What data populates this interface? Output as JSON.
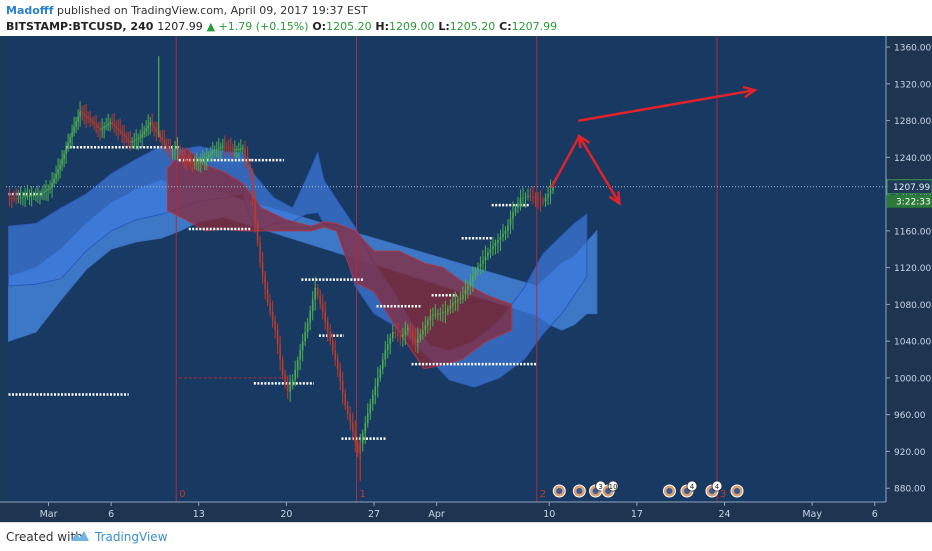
{
  "header": {
    "author": "Madofff",
    "published": "published on TradingView.com, April 09, 2017 19:37 EST",
    "symbol": "BITSTAMP:BTCUSD, 240",
    "last": "1207.99",
    "change": "▲ +1.79 (+0.15%)",
    "o_label": "O:",
    "o_value": "1205.20",
    "h_label": "H:",
    "h_value": "1209.00",
    "l_label": "L:",
    "l_value": "1205.20",
    "c_label": "C:",
    "c_value": "1207.99"
  },
  "footer": {
    "created_with": "Created with",
    "brand": "TradingView"
  },
  "colors": {
    "background": "#1a3a5c",
    "axis_bg": "#1e3450",
    "up": "#4caf50",
    "down": "#c0392b",
    "cloud_blue": "#3d7be0",
    "cloud_red": "#8a2a3a",
    "arrow": "#e0232b",
    "vline": "#b02a3a"
  },
  "chart_data": {
    "type": "candlestick",
    "price_axis": {
      "ticks": [
        "1360.00",
        "1320.00",
        "1280.00",
        "1240.00",
        "1200.00",
        "1160.00",
        "1120.00",
        "1080.00",
        "1040.00",
        "1000.00",
        "960.00",
        "920.00",
        "880.00"
      ],
      "ylim": [
        865,
        1372
      ],
      "last_price_label": "1207.99",
      "countdown_label": "3:22:33"
    },
    "time_axis": {
      "ticks": [
        {
          "label": "Mar",
          "day": 1
        },
        {
          "label": "6",
          "day": 6
        },
        {
          "label": "13",
          "day": 13
        },
        {
          "label": "20",
          "day": 20
        },
        {
          "label": "27",
          "day": 27
        },
        {
          "label": "Apr",
          "day": 32
        },
        {
          "label": "10",
          "day": 41
        },
        {
          "label": "17",
          "day": 48
        },
        {
          "label": "24",
          "day": 55
        },
        {
          "label": "May",
          "day": 62
        },
        {
          "label": "6",
          "day": 67
        }
      ],
      "xlim": [
        -2.4,
        67.9
      ]
    },
    "vertical_markers": [
      {
        "day": 11.2,
        "label": "0"
      },
      {
        "day": 25.6,
        "label": "1"
      },
      {
        "day": 40.0,
        "label": "2"
      },
      {
        "day": 54.4,
        "label": "3"
      }
    ],
    "event_badges": [
      {
        "day": 41.8,
        "count": ""
      },
      {
        "day": 43.4,
        "count": ""
      },
      {
        "day": 44.7,
        "count": "3"
      },
      {
        "day": 45.7,
        "count": "10"
      },
      {
        "day": 50.6,
        "count": ""
      },
      {
        "day": 52.0,
        "count": "4"
      },
      {
        "day": 54.0,
        "count": "4"
      },
      {
        "day": 56.0,
        "count": ""
      }
    ],
    "price_path": [
      [
        -2.2,
        1196
      ],
      [
        -1.5,
        1195
      ],
      [
        -0.6,
        1198
      ],
      [
        0.4,
        1200
      ],
      [
        1.2,
        1207
      ],
      [
        2.0,
        1232
      ],
      [
        2.8,
        1262
      ],
      [
        3.6,
        1290
      ],
      [
        4.4,
        1280
      ],
      [
        5.2,
        1270
      ],
      [
        6.0,
        1278
      ],
      [
        6.8,
        1268
      ],
      [
        7.6,
        1256
      ],
      [
        8.4,
        1262
      ],
      [
        9.2,
        1278
      ],
      [
        10.0,
        1262
      ],
      [
        10.8,
        1246
      ],
      [
        11.4,
        1250
      ],
      [
        11.8,
        1238
      ],
      [
        12.6,
        1232
      ],
      [
        13.4,
        1236
      ],
      [
        14.2,
        1247
      ],
      [
        15.0,
        1252
      ],
      [
        15.8,
        1248
      ],
      [
        16.6,
        1250
      ],
      [
        17.2,
        1222
      ],
      [
        17.6,
        1168
      ],
      [
        18.0,
        1126
      ],
      [
        18.6,
        1082
      ],
      [
        19.2,
        1052
      ],
      [
        19.8,
        1004
      ],
      [
        20.2,
        985
      ],
      [
        20.6,
        998
      ],
      [
        21.2,
        1030
      ],
      [
        21.8,
        1060
      ],
      [
        22.4,
        1098
      ],
      [
        23.0,
        1072
      ],
      [
        23.6,
        1040
      ],
      [
        24.2,
        1010
      ],
      [
        24.8,
        970
      ],
      [
        25.4,
        942
      ],
      [
        25.8,
        918
      ],
      [
        26.2,
        940
      ],
      [
        26.8,
        972
      ],
      [
        27.4,
        1000
      ],
      [
        28.0,
        1030
      ],
      [
        28.6,
        1050
      ],
      [
        29.2,
        1044
      ],
      [
        29.8,
        1055
      ],
      [
        30.4,
        1038
      ],
      [
        31.0,
        1052
      ],
      [
        31.6,
        1068
      ],
      [
        32.2,
        1070
      ],
      [
        32.8,
        1072
      ],
      [
        33.4,
        1082
      ],
      [
        34.0,
        1086
      ],
      [
        34.6,
        1100
      ],
      [
        35.2,
        1117
      ],
      [
        35.8,
        1128
      ],
      [
        36.4,
        1140
      ],
      [
        37.0,
        1150
      ],
      [
        37.6,
        1160
      ],
      [
        38.2,
        1180
      ],
      [
        38.8,
        1195
      ],
      [
        39.4,
        1198
      ],
      [
        40.0,
        1195
      ],
      [
        40.6,
        1192
      ],
      [
        41.0,
        1200
      ],
      [
        41.4,
        1208
      ]
    ],
    "spikes": [
      [
        9.8,
        1350
      ],
      [
        25.9,
        888
      ]
    ],
    "cloud_blue": [
      [
        -2.2,
        1100,
        1165
      ],
      [
        0.0,
        1102,
        1168
      ],
      [
        2.0,
        1108,
        1185
      ],
      [
        4.0,
        1138,
        1200
      ],
      [
        6.0,
        1160,
        1222
      ],
      [
        8.0,
        1172,
        1238
      ],
      [
        10.0,
        1178,
        1252
      ],
      [
        11.4,
        1184,
        1248
      ],
      [
        13.0,
        1192,
        1252
      ],
      [
        15.0,
        1196,
        1246
      ],
      [
        16.5,
        1200,
        1245
      ],
      [
        17.5,
        1160,
        1220
      ],
      [
        19.0,
        1168,
        1196
      ],
      [
        20.5,
        1170,
        1185
      ],
      [
        21.5,
        1178,
        1214
      ],
      [
        22.5,
        1180,
        1245
      ],
      [
        23.0,
        1168,
        1215
      ],
      [
        24.2,
        1160,
        1190
      ],
      [
        25.5,
        1100,
        1164
      ],
      [
        27.0,
        1070,
        1125
      ],
      [
        28.5,
        1058,
        1095
      ],
      [
        30.0,
        1040,
        1060
      ],
      [
        31.5,
        1020,
        1035
      ],
      [
        33.0,
        998,
        1030
      ],
      [
        35.0,
        990,
        1040
      ],
      [
        37.0,
        1000,
        1062
      ],
      [
        39.0,
        1020,
        1098
      ],
      [
        40.5,
        1048,
        1135
      ],
      [
        42.0,
        1070,
        1155
      ],
      [
        43.0,
        1090,
        1168
      ],
      [
        44.0,
        1110,
        1178
      ]
    ],
    "cloud_red": [
      [
        10.5,
        1182,
        1228
      ],
      [
        12.0,
        1172,
        1250
      ],
      [
        13.5,
        1160,
        1232
      ],
      [
        15.0,
        1162,
        1224
      ],
      [
        16.5,
        1160,
        1212
      ],
      [
        18.0,
        1160,
        1185
      ],
      [
        20.0,
        1160,
        1172
      ],
      [
        22.0,
        1160,
        1165
      ],
      [
        23.0,
        1164,
        1170
      ],
      [
        24.0,
        1160,
        1168
      ],
      [
        25.5,
        1104,
        1160
      ],
      [
        27.0,
        1094,
        1138
      ],
      [
        29.0,
        1050,
        1138
      ],
      [
        31.0,
        1010,
        1125
      ],
      [
        32.5,
        1014,
        1120
      ],
      [
        34.0,
        1020,
        1105
      ],
      [
        36.0,
        1040,
        1090
      ],
      [
        38.0,
        1052,
        1080
      ]
    ],
    "cloud_light": [
      [
        -2.2,
        1040,
        1110
      ],
      [
        0.0,
        1050,
        1120
      ],
      [
        2.0,
        1085,
        1140
      ],
      [
        4.0,
        1118,
        1168
      ],
      [
        6.0,
        1140,
        1190
      ],
      [
        8.0,
        1148,
        1205
      ],
      [
        10.0,
        1152,
        1215
      ],
      [
        11.5,
        1160,
        1205
      ],
      [
        13.0,
        1170,
        1210
      ],
      [
        15.0,
        1175,
        1200
      ],
      [
        40.0,
        1068,
        1100
      ],
      [
        41.0,
        1058,
        1112
      ],
      [
        42.0,
        1052,
        1125
      ],
      [
        43.0,
        1058,
        1132
      ],
      [
        44.0,
        1070,
        1148
      ],
      [
        44.8,
        1070,
        1160
      ]
    ],
    "levels": [
      {
        "y": 1251,
        "d0": 2.4,
        "d1": 11.4
      },
      {
        "y": 1237,
        "d0": 11.4,
        "d1": 17.2
      },
      {
        "y": 1237,
        "d0": 17.2,
        "d1": 19.8
      },
      {
        "y": 1162,
        "d0": 12.2,
        "d1": 17.2
      },
      {
        "y": 1107,
        "d0": 21.2,
        "d1": 26.2
      },
      {
        "y": 1046,
        "d0": 22.6,
        "d1": 24.6
      },
      {
        "y": 1078,
        "d0": 27.2,
        "d1": 30.8
      },
      {
        "y": 1090,
        "d0": 31.6,
        "d1": 33.6
      },
      {
        "y": 1015,
        "d0": 30.0,
        "d1": 40.0
      },
      {
        "y": 994,
        "d0": 17.4,
        "d1": 22.2
      },
      {
        "y": 934,
        "d0": 24.4,
        "d1": 28.0
      },
      {
        "y": 982,
        "d0": -2.2,
        "d1": 7.4
      },
      {
        "y": 1200,
        "d0": -2.2,
        "d1": 0.6
      },
      {
        "y": 1152,
        "d0": 34.0,
        "d1": 36.4
      },
      {
        "y": 1188,
        "d0": 36.4,
        "d1": 39.4
      }
    ],
    "arrows": [
      {
        "points": [
          [
            41.2,
            1208
          ],
          [
            43.4,
            1263
          ],
          [
            46.6,
            1190
          ]
        ]
      },
      {
        "points": [
          [
            43.4,
            1280
          ],
          [
            57.4,
            1313
          ]
        ]
      }
    ],
    "current_price": 1207.99,
    "dotted_price_line": 1207.99
  }
}
